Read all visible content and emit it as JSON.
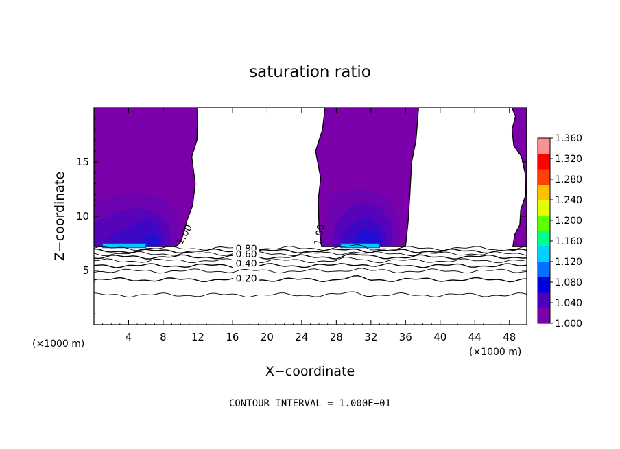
{
  "chart_data": {
    "type": "contour",
    "title": "saturation ratio",
    "xlabel": "X−coordinate",
    "ylabel": "Z−coordinate",
    "x_unit": "(×1000 m)",
    "y_unit": "(×1000 m)",
    "footer": "CONTOUR INTERVAL = 1.000E−01",
    "xlim": [
      0,
      50
    ],
    "ylim": [
      0,
      20
    ],
    "x_ticks": [
      4,
      8,
      12,
      16,
      20,
      24,
      28,
      32,
      36,
      40,
      44,
      48
    ],
    "y_ticks": [
      5,
      10,
      15
    ],
    "colorbar": {
      "min": 1.0,
      "max": 1.36,
      "tick_labels": [
        "1.000",
        "1.040",
        "1.080",
        "1.120",
        "1.160",
        "1.200",
        "1.240",
        "1.280",
        "1.320",
        "1.360"
      ],
      "colors": [
        "#7a00aa",
        "#4a00c0",
        "#0000dd",
        "#0070ff",
        "#00d0ff",
        "#00ff90",
        "#60ff00",
        "#e0ff00",
        "#ffc000",
        "#ff4000",
        "#ff0000",
        "#ff9090"
      ]
    },
    "contour_labels": [
      {
        "text": "0.80",
        "x": 17.6,
        "z": 6.95
      },
      {
        "text": "0.60",
        "x": 17.6,
        "z": 6.45
      },
      {
        "text": "0.40",
        "x": 17.6,
        "z": 5.6
      },
      {
        "text": "0.20",
        "x": 17.6,
        "z": 4.2
      },
      {
        "text": "1.00",
        "x": 10.5,
        "z": 8.3,
        "rotate": -60
      },
      {
        "text": "1.00",
        "x": 26.1,
        "z": 8.3,
        "rotate": -80
      }
    ],
    "contour_levels_below_cloud": [
      {
        "level": 0.9,
        "z": 7.05
      },
      {
        "level": 0.8,
        "z": 6.8
      },
      {
        "level": 0.7,
        "z": 6.55
      },
      {
        "level": 0.6,
        "z": 6.25
      },
      {
        "level": 0.5,
        "z": 5.9
      },
      {
        "level": 0.4,
        "z": 5.45
      },
      {
        "level": 0.3,
        "z": 4.95
      },
      {
        "level": 0.2,
        "z": 4.15
      },
      {
        "level": 0.1,
        "z": 2.75
      }
    ],
    "saturated_regions": [
      {
        "name": "left",
        "value": 1.0,
        "outline": [
          [
            0,
            20
          ],
          [
            12,
            20
          ],
          [
            11.9,
            17
          ],
          [
            11.3,
            15.5
          ],
          [
            11.7,
            13
          ],
          [
            11.4,
            11
          ],
          [
            10.7,
            9.5
          ],
          [
            10.4,
            8.5
          ],
          [
            10,
            7.6
          ],
          [
            9.5,
            7.2
          ],
          [
            0,
            7.2
          ]
        ]
      },
      {
        "name": "middle",
        "value": 1.0,
        "outline": [
          [
            26.7,
            20
          ],
          [
            37.5,
            20
          ],
          [
            37.2,
            17
          ],
          [
            36.7,
            15
          ],
          [
            36.5,
            12
          ],
          [
            36.3,
            9.5
          ],
          [
            36,
            7.2
          ],
          [
            26.3,
            7.2
          ],
          [
            26,
            9
          ],
          [
            25.9,
            11.5
          ],
          [
            26.2,
            13.5
          ],
          [
            25.6,
            16
          ],
          [
            26.4,
            18
          ]
        ]
      },
      {
        "name": "right",
        "value": 1.0,
        "outline": [
          [
            48.3,
            20
          ],
          [
            50,
            20
          ],
          [
            50,
            7.2
          ],
          [
            48.4,
            7.2
          ],
          [
            48.6,
            8.3
          ],
          [
            49.2,
            9.2
          ],
          [
            49.3,
            10.6
          ],
          [
            49.9,
            12
          ],
          [
            49.8,
            14
          ],
          [
            49.4,
            15.5
          ],
          [
            48.5,
            16.5
          ],
          [
            48.3,
            18
          ],
          [
            48.7,
            19.2
          ]
        ]
      }
    ],
    "supersaturation_layers": [
      {
        "region": "left",
        "value": 1.01,
        "outline": [
          [
            0,
            7.2
          ],
          [
            0,
            11.2
          ],
          [
            3,
            12.1
          ],
          [
            5.5,
            12.1
          ],
          [
            8,
            11.6
          ],
          [
            9.5,
            10.5
          ],
          [
            9.8,
            9
          ],
          [
            9.6,
            7.6
          ],
          [
            9,
            7.2
          ]
        ]
      },
      {
        "region": "left",
        "value": 1.02,
        "outline": [
          [
            0,
            7.2
          ],
          [
            0,
            9.3
          ],
          [
            2.5,
            10.3
          ],
          [
            5,
            10.8
          ],
          [
            7.5,
            10.2
          ],
          [
            8.7,
            9
          ],
          [
            8.9,
            7.6
          ],
          [
            8.5,
            7.2
          ]
        ]
      },
      {
        "region": "left",
        "value": 1.03,
        "outline": [
          [
            0.8,
            7.2
          ],
          [
            2,
            8.3
          ],
          [
            4,
            9
          ],
          [
            6.1,
            9.8
          ],
          [
            7.7,
            9
          ],
          [
            8.1,
            7.8
          ],
          [
            7.9,
            7.2
          ]
        ]
      },
      {
        "region": "left",
        "value": 1.05,
        "outline": [
          [
            4.5,
            7.2
          ],
          [
            5.8,
            8
          ],
          [
            7,
            8.4
          ],
          [
            7.6,
            7.7
          ],
          [
            7.4,
            7.2
          ]
        ]
      },
      {
        "region": "left",
        "value": 1.1,
        "outline": [
          [
            1,
            7.1
          ],
          [
            6,
            7.1
          ],
          [
            6,
            7.5
          ],
          [
            1,
            7.5
          ]
        ]
      },
      {
        "region": "middle",
        "value": 1.01,
        "outline": [
          [
            26.6,
            7.2
          ],
          [
            26.8,
            10
          ],
          [
            27.6,
            11.8
          ],
          [
            29.5,
            12.5
          ],
          [
            32,
            12.4
          ],
          [
            34,
            11.6
          ],
          [
            35,
            10.2
          ],
          [
            35.4,
            8.7
          ],
          [
            35.3,
            7.2
          ]
        ]
      },
      {
        "region": "middle",
        "value": 1.02,
        "outline": [
          [
            27.5,
            7.2
          ],
          [
            28,
            9.5
          ],
          [
            29.5,
            10.8
          ],
          [
            31,
            11.3
          ],
          [
            33,
            10.9
          ],
          [
            34.2,
            9.6
          ],
          [
            34.5,
            8.2
          ],
          [
            34.4,
            7.2
          ]
        ]
      },
      {
        "region": "middle",
        "value": 1.03,
        "outline": [
          [
            28.4,
            7.2
          ],
          [
            29,
            8.8
          ],
          [
            30.5,
            9.8
          ],
          [
            31.7,
            10
          ],
          [
            33.2,
            9.1
          ],
          [
            33.8,
            8
          ],
          [
            33.8,
            7.2
          ]
        ]
      },
      {
        "region": "middle",
        "value": 1.05,
        "outline": [
          [
            29.5,
            7.2
          ],
          [
            30.2,
            8.2
          ],
          [
            31.2,
            8.8
          ],
          [
            32.6,
            8.5
          ],
          [
            33.2,
            7.6
          ],
          [
            33.1,
            7.2
          ]
        ]
      },
      {
        "region": "middle",
        "value": 1.1,
        "outline": [
          [
            28.5,
            7.1
          ],
          [
            33,
            7.1
          ],
          [
            33,
            7.5
          ],
          [
            28.5,
            7.5
          ]
        ]
      }
    ]
  }
}
